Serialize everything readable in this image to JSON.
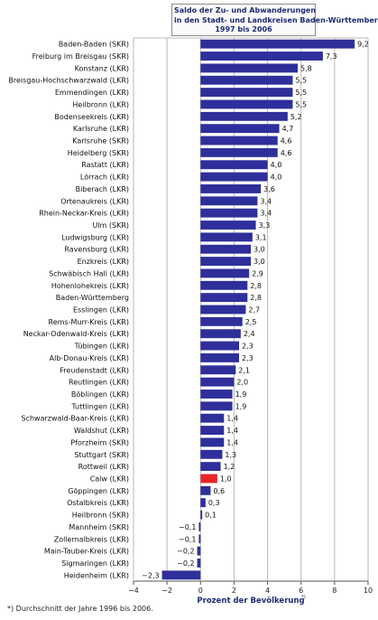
{
  "chart_data": {
    "type": "bar",
    "orientation": "horizontal",
    "title": [
      "Saldo der Zu- und Abwanderungen",
      "in den Stadt- und Landkreisen Baden-Württembergs",
      "1997 bis 2006"
    ],
    "xlabel": "Prozent der Bevölkerung",
    "xlabel_footnote_mark": "*)",
    "footnote": "*) Durchschnitt der Jahre 1996 bis 2006.",
    "xlim": [
      -4,
      10
    ],
    "xticks": [
      -4,
      -2,
      0,
      2,
      4,
      6,
      8,
      10
    ],
    "xtick_labels": [
      "−4",
      "−2",
      "0",
      "2",
      "4",
      "6",
      "8",
      "10"
    ],
    "grid": true,
    "colors": {
      "bar": "#2e2f9a",
      "highlight": "#e8262a",
      "title": "#1e2a73",
      "axis_label": "#1e2a73",
      "grid": "#b9b9b9"
    },
    "highlight": "Calw (LKR)",
    "categories": [
      "Baden-Baden (SKR)",
      "Freiburg im Breisgau (SKR)",
      "Konstanz (LKR)",
      "Breisgau-Hochschwarzwald (LKR)",
      "Emmendingen (LKR)",
      "Heilbronn (LKR)",
      "Bodenseekreis (LKR)",
      "Karlsruhe (LKR)",
      "Karlsruhe (SKR)",
      "Heidelberg (SKR)",
      "Rastatt (LKR)",
      "Lörrach (LKR)",
      "Biberach (LKR)",
      "Ortenaukreis (LKR)",
      "Rhein-Neckar-Kreis (LKR)",
      "Ulm (SKR)",
      "Ludwigsburg (LKR)",
      "Ravensburg (LKR)",
      "Enzkreis (LKR)",
      "Schwäbisch Hall (LKR)",
      "Hohenlohekreis (LKR)",
      "Baden-Württemberg",
      "Esslingen (LKR)",
      "Rems-Murr-Kreis  (LKR)",
      "Neckar-Odenwald-Kreis (LKR)",
      "Tübingen (LKR)",
      "Alb-Donau-Kreis (LKR)",
      "Freudenstadt (LKR)",
      "Reutlingen (LKR)",
      "Böblingen (LKR)",
      "Tuttlingen (LKR)",
      "Schwarzwald-Baar-Kreis (LKR)",
      "Waldshut (LKR)",
      "Pforzheim (SKR)",
      "Stuttgart (SKR)",
      "Rottweil (LKR)",
      "Calw (LKR)",
      "Göppingen (LKR)",
      "Ostalbkreis (LKR)",
      "Heilbronn (SKR)",
      "Mannheim (SKR)",
      "Zollernalbkreis (LKR)",
      "Main-Tauber-Kreis (LKR)",
      "Sigmaringen (LKR)",
      "Heidenheim (LKR)"
    ],
    "values": [
      9.2,
      7.3,
      5.8,
      5.5,
      5.5,
      5.5,
      5.2,
      4.7,
      4.6,
      4.6,
      4.0,
      4.0,
      3.6,
      3.4,
      3.4,
      3.3,
      3.1,
      3.0,
      3.0,
      2.9,
      2.8,
      2.8,
      2.7,
      2.5,
      2.4,
      2.3,
      2.3,
      2.1,
      2.0,
      1.9,
      1.9,
      1.4,
      1.4,
      1.4,
      1.3,
      1.2,
      1.0,
      0.6,
      0.3,
      0.1,
      -0.1,
      -0.1,
      -0.2,
      -0.2,
      -2.3
    ],
    "value_labels": [
      "9,2",
      "7,3",
      "5,8",
      "5,5",
      "5,5",
      "5,5",
      "5,2",
      "4,7",
      "4,6",
      "4,6",
      "4,0",
      "4,0",
      "3,6",
      "3,4",
      "3,4",
      "3,3",
      "3,1",
      "3,0",
      "3,0",
      "2,9",
      "2,8",
      "2,8",
      "2,7",
      "2,5",
      "2,4",
      "2,3",
      "2,3",
      "2,1",
      "2,0",
      "1,9",
      "1,9",
      "1,4",
      "1,4",
      "1,4",
      "1,3",
      "1,2",
      "1,0",
      "0,6",
      "0,3",
      "0,1",
      "−0,1",
      "−0,1",
      "−0,2",
      "−0,2",
      "−2,3"
    ]
  }
}
